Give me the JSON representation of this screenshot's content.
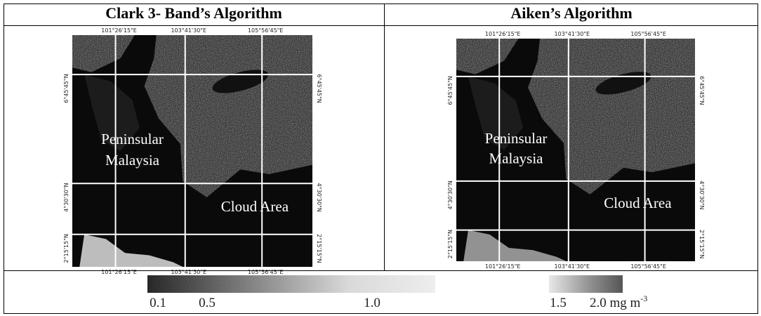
{
  "panels": [
    {
      "title": "Clark 3- Band’s Algorithm",
      "lon_labels": [
        "101°26'15\"E",
        "103°41'30\"E",
        "105°56'45\"E"
      ],
      "lat_labels": [
        "6°45'45\"N",
        "4°30'30\"N",
        "2°15'15\"N"
      ],
      "region_label": [
        "Peninsular",
        "Malaysia"
      ],
      "cloud_label": "Cloud Area"
    },
    {
      "title": "Aiken’s Algorithm",
      "lon_labels": [
        "101°26'15\"E",
        "103°41'30\"E",
        "105°56'45\"E"
      ],
      "lat_labels": [
        "6°45'45\"N",
        "4°30'30\"N",
        "2°15'15\"N"
      ],
      "region_label": [
        "Peninsular",
        "Malaysia"
      ],
      "cloud_label": "Cloud Area"
    }
  ],
  "colorbar": {
    "labels": [
      "0.1",
      "0.5",
      "1.0",
      "1.5",
      "2.0 mg m"
    ],
    "unit_superscript": "-3"
  }
}
